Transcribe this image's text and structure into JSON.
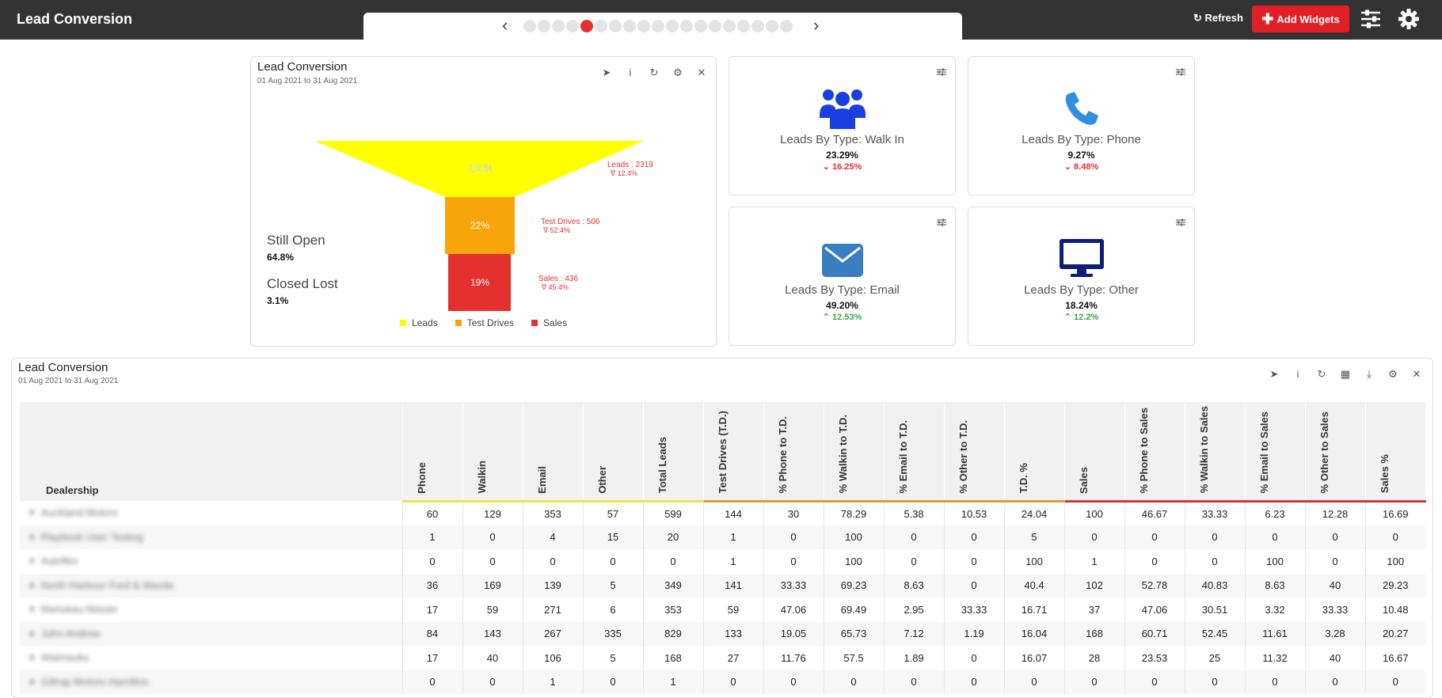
{
  "app": {
    "title": "Lead Conversion"
  },
  "header": {
    "refresh_label": "Refresh",
    "add_widgets_label": "Add Widgets",
    "pager": {
      "total_pages": 19,
      "active_index": 4
    }
  },
  "funnel_widget": {
    "title": "Lead Conversion",
    "date_range": "01 Aug 2021 to 31 Aug 2021",
    "still_open_label": "Still Open",
    "still_open_value": "64.8%",
    "closed_lost_label": "Closed Lost",
    "closed_lost_value": "3.1%",
    "stages": [
      {
        "name": "Leads",
        "pct_label": "100%",
        "annotation": "Leads : 2319",
        "change": "∇ 12.4%",
        "color": "#ffff00"
      },
      {
        "name": "Test Drives",
        "pct_label": "22%",
        "annotation": "Test Drives : 506",
        "change": "∇ 52.4%",
        "color": "#f7a50a"
      },
      {
        "name": "Sales",
        "pct_label": "19%",
        "annotation": "Sales : 436",
        "change": "∇ 45.4%",
        "color": "#e53030"
      }
    ],
    "legend": [
      "Leads",
      "Test Drives",
      "Sales"
    ]
  },
  "kpis": [
    {
      "label": "Leads By Type: Walk In",
      "value": "23.29%",
      "delta": "16.25%",
      "direction": "down",
      "icon": "users-icon",
      "icon_color": "#1a3fe0"
    },
    {
      "label": "Leads By Type: Phone",
      "value": "9.27%",
      "delta": "8.48%",
      "direction": "down",
      "icon": "phone-icon",
      "icon_color": "#2f8fe0"
    },
    {
      "label": "Leads By Type: Email",
      "value": "49.20%",
      "delta": "12.53%",
      "direction": "up",
      "icon": "envelope-icon",
      "icon_color": "#3a7ec2"
    },
    {
      "label": "Leads By Type: Other",
      "value": "18.24%",
      "delta": "12.2%",
      "direction": "up",
      "icon": "monitor-icon",
      "icon_color": "#0d1e7a"
    }
  ],
  "table_widget": {
    "title": "Lead Conversion",
    "date_range": "01 Aug 2021 to 31 Aug 2021",
    "dealer_header": "Dealership",
    "columns": [
      "Phone",
      "Walkin",
      "Email",
      "Other",
      "Total Leads",
      "Test Drives (T.D.)",
      "% Phone to T.D.",
      "% Walkin to T.D.",
      "% Email to T.D.",
      "% Other to T.D.",
      "T.D. %",
      "Sales",
      "% Phone to Sales",
      "% Walkin to Sales",
      "% Email to Sales",
      "% Other to Sales",
      "Sales %"
    ],
    "rows": [
      {
        "dealer": "Auckland Motors",
        "values": [
          "60",
          "129",
          "353",
          "57",
          "599",
          "144",
          "30",
          "78.29",
          "5.38",
          "10.53",
          "24.04",
          "100",
          "46.67",
          "33.33",
          "6.23",
          "12.28",
          "16.69"
        ]
      },
      {
        "dealer": "Playbook User Testing",
        "values": [
          "1",
          "0",
          "4",
          "15",
          "20",
          "1",
          "0",
          "100",
          "0",
          "0",
          "5",
          "0",
          "0",
          "0",
          "0",
          "0",
          "0"
        ]
      },
      {
        "dealer": "Autoflex",
        "values": [
          "0",
          "0",
          "0",
          "0",
          "0",
          "1",
          "0",
          "100",
          "0",
          "0",
          "100",
          "1",
          "0",
          "0",
          "100",
          "0",
          "100"
        ]
      },
      {
        "dealer": "North Harbour Ford & Mazda",
        "values": [
          "36",
          "169",
          "139",
          "5",
          "349",
          "141",
          "33.33",
          "69.23",
          "8.63",
          "0",
          "40.4",
          "102",
          "52.78",
          "40.83",
          "8.63",
          "40",
          "29.23"
        ]
      },
      {
        "dealer": "Manukau Nissan",
        "values": [
          "17",
          "59",
          "271",
          "6",
          "353",
          "59",
          "47.06",
          "69.49",
          "2.95",
          "33.33",
          "16.71",
          "37",
          "47.06",
          "30.51",
          "3.32",
          "33.33",
          "10.48"
        ]
      },
      {
        "dealer": "John Andrew",
        "values": [
          "84",
          "143",
          "267",
          "335",
          "829",
          "133",
          "19.05",
          "65.73",
          "7.12",
          "1.19",
          "16.04",
          "168",
          "60.71",
          "52.45",
          "11.61",
          "3.28",
          "20.27"
        ]
      },
      {
        "dealer": "Waimauku",
        "values": [
          "17",
          "40",
          "106",
          "5",
          "168",
          "27",
          "11.76",
          "57.5",
          "1.89",
          "0",
          "16.07",
          "28",
          "23.53",
          "25",
          "11.32",
          "40",
          "16.67"
        ]
      },
      {
        "dealer": "Giltrap Motors Hamilton",
        "values": [
          "0",
          "0",
          "1",
          "0",
          "1",
          "0",
          "0",
          "0",
          "0",
          "0",
          "0",
          "0",
          "0",
          "0",
          "0",
          "0",
          "0"
        ]
      }
    ]
  }
}
